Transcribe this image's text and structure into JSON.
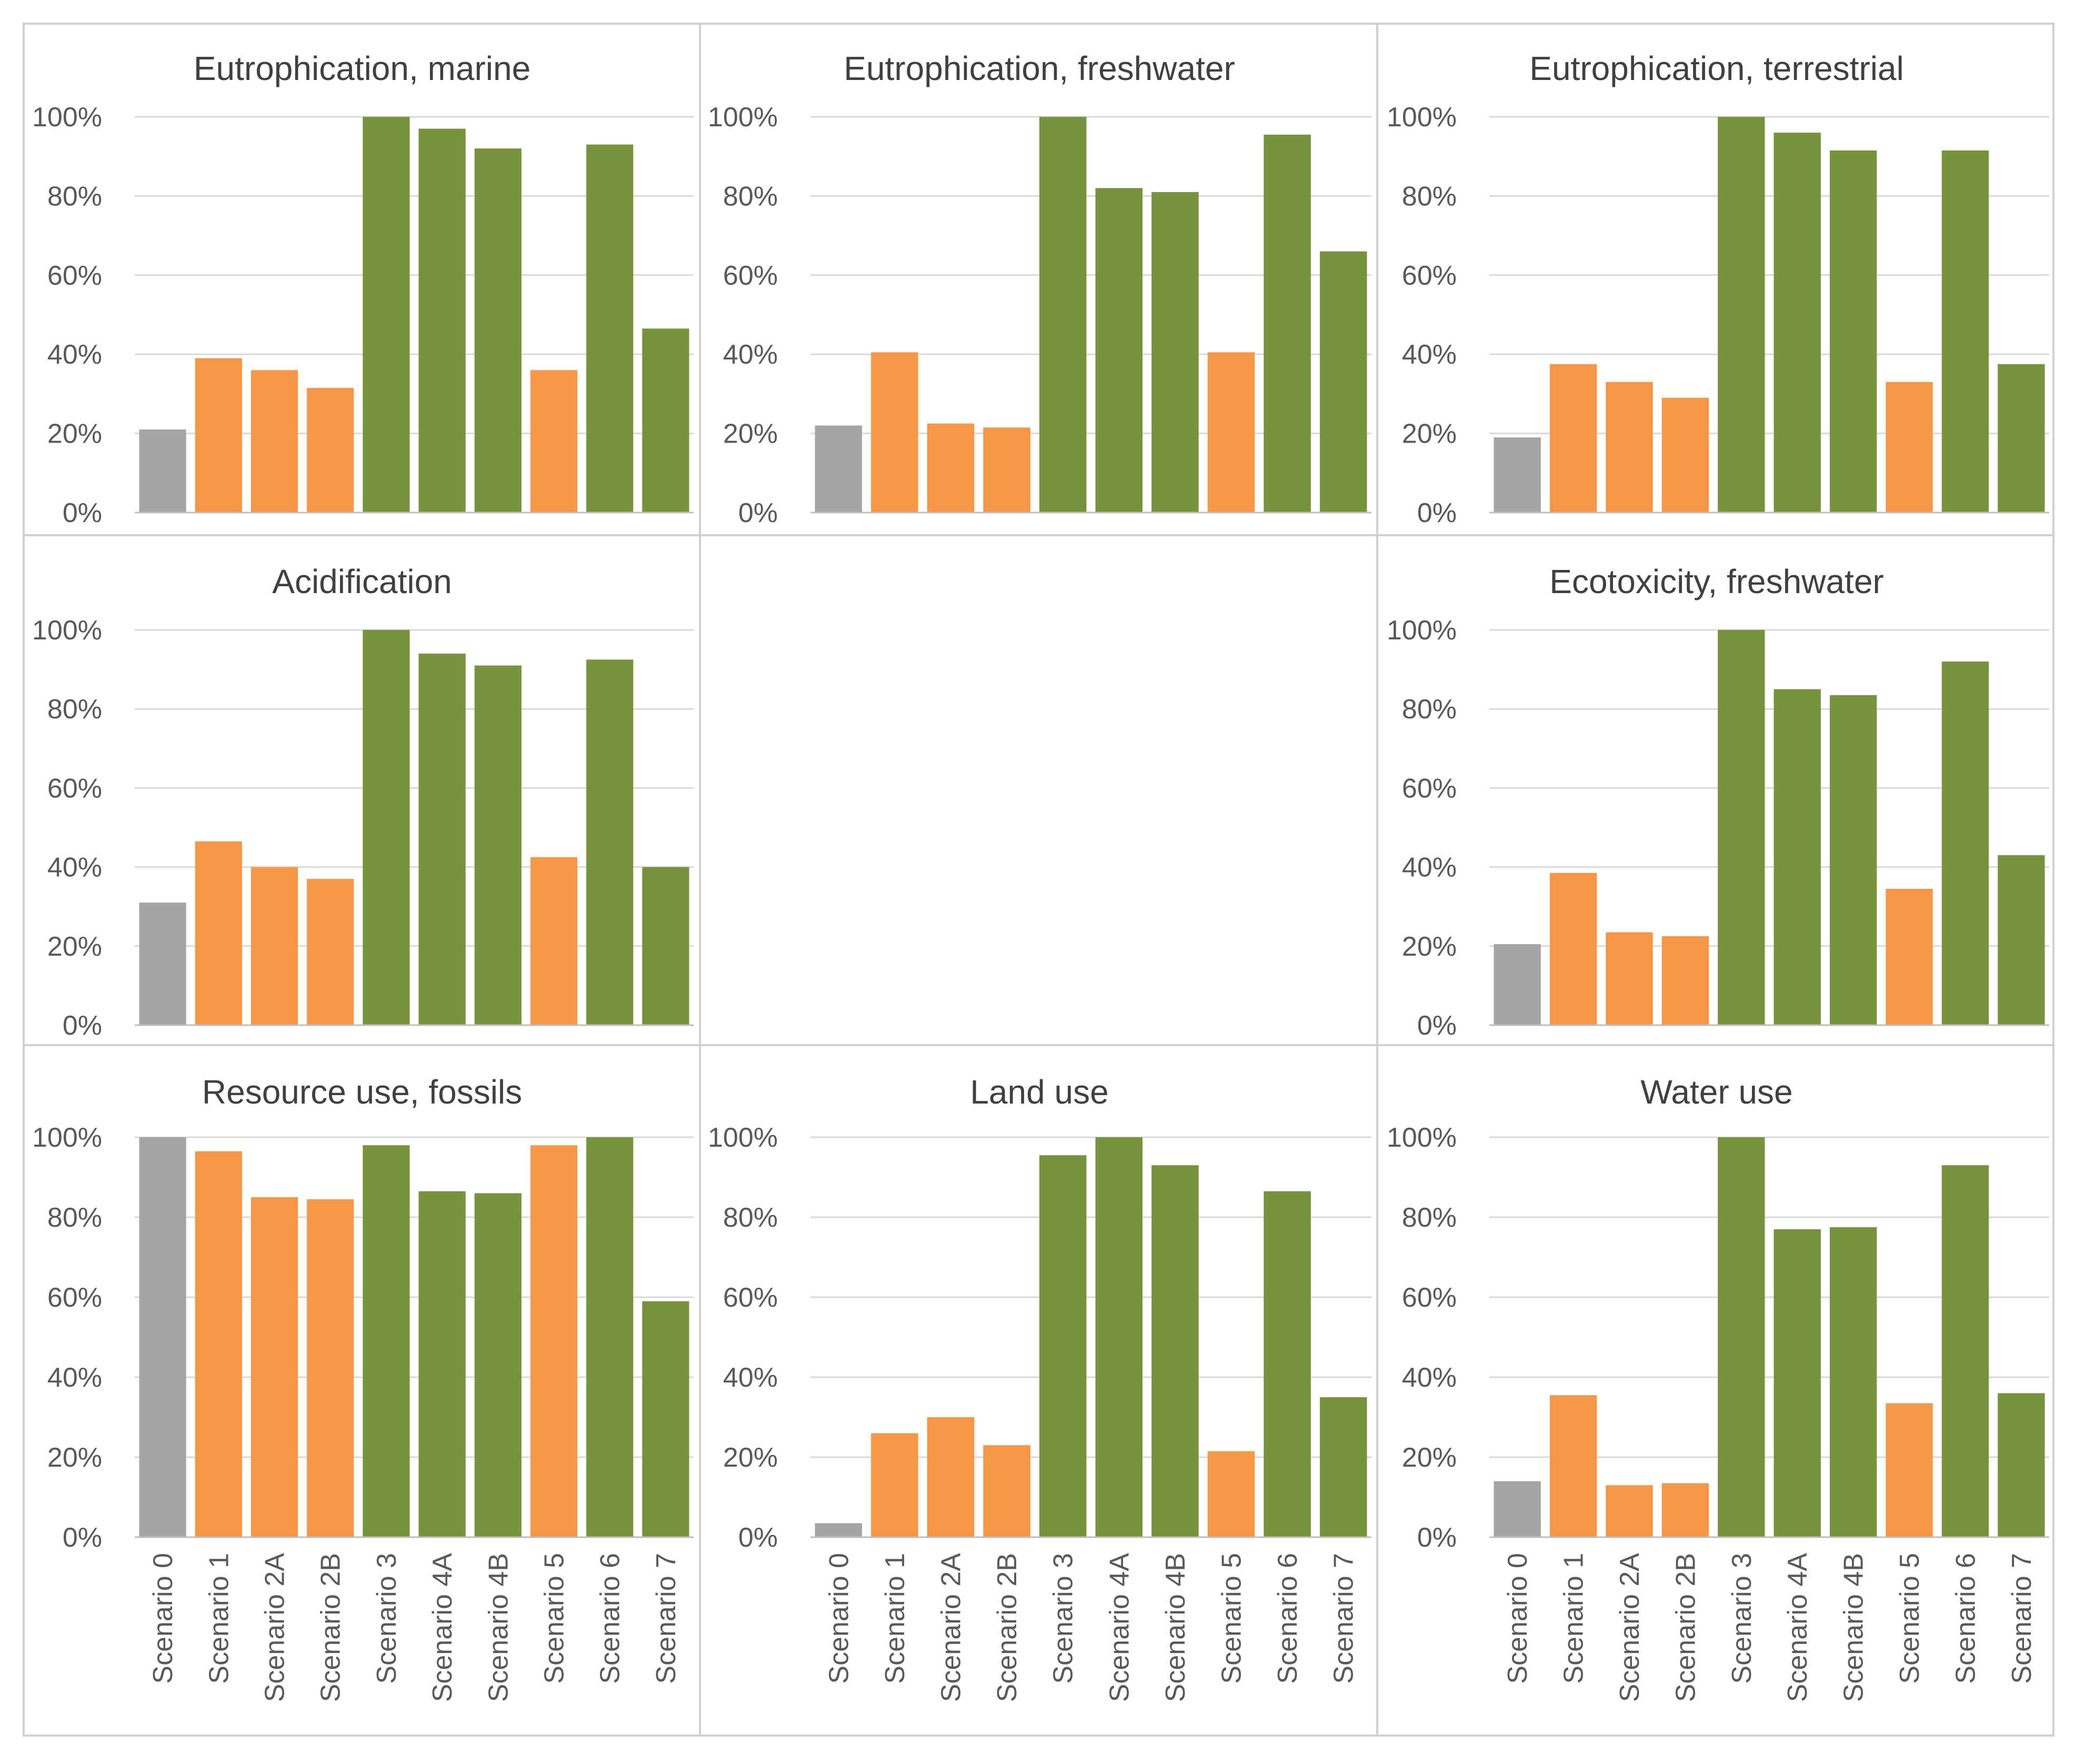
{
  "colors": {
    "gray": "#a5a5a5",
    "orange": "#f79646",
    "green": "#77933c"
  },
  "chart_data": [
    {
      "type": "bar",
      "title": "Eutrophication, marine",
      "categories": [
        "Scenario 0",
        "Scenario 1",
        "Scenario 2A",
        "Scenario 2B",
        "Scenario 3",
        "Scenario 4A",
        "Scenario 4B",
        "Scenario 5",
        "Scenario 6",
        "Scenario 7"
      ],
      "values": [
        21,
        39,
        36,
        31.5,
        100,
        97,
        92,
        36,
        93,
        46.5
      ],
      "bar_colors": [
        "gray",
        "orange",
        "orange",
        "orange",
        "green",
        "green",
        "green",
        "orange",
        "green",
        "green"
      ],
      "ylim": [
        0,
        100
      ],
      "yticks": [
        "0%",
        "20%",
        "40%",
        "60%",
        "80%",
        "100%"
      ],
      "gridlines": true
    },
    {
      "type": "bar",
      "title": "Eutrophication, freshwater",
      "categories": [
        "Scenario 0",
        "Scenario 1",
        "Scenario 2A",
        "Scenario 2B",
        "Scenario 3",
        "Scenario 4A",
        "Scenario 4B",
        "Scenario 5",
        "Scenario 6",
        "Scenario 7"
      ],
      "values": [
        22,
        40.5,
        22.5,
        21.5,
        100,
        82,
        81,
        40.5,
        95.5,
        66
      ],
      "bar_colors": [
        "gray",
        "orange",
        "orange",
        "orange",
        "green",
        "green",
        "green",
        "orange",
        "green",
        "green"
      ],
      "ylim": [
        0,
        100
      ],
      "yticks": [
        "0%",
        "20%",
        "40%",
        "60%",
        "80%",
        "100%"
      ],
      "gridlines": true
    },
    {
      "type": "bar",
      "title": "Eutrophication, terrestrial",
      "categories": [
        "Scenario 0",
        "Scenario 1",
        "Scenario 2A",
        "Scenario 2B",
        "Scenario 3",
        "Scenario 4A",
        "Scenario 4B",
        "Scenario 5",
        "Scenario 6",
        "Scenario 7"
      ],
      "values": [
        19,
        37.5,
        33,
        29,
        100,
        96,
        91.5,
        33,
        91.5,
        37.5
      ],
      "bar_colors": [
        "gray",
        "orange",
        "orange",
        "orange",
        "green",
        "green",
        "green",
        "orange",
        "green",
        "green"
      ],
      "ylim": [
        0,
        100
      ],
      "yticks": [
        "0%",
        "20%",
        "40%",
        "60%",
        "80%",
        "100%"
      ],
      "gridlines": true
    },
    {
      "type": "bar",
      "title": "Acidification",
      "categories": [
        "Scenario 0",
        "Scenario 1",
        "Scenario 2A",
        "Scenario 2B",
        "Scenario 3",
        "Scenario 4A",
        "Scenario 4B",
        "Scenario 5",
        "Scenario 6",
        "Scenario 7"
      ],
      "values": [
        31,
        46.5,
        40,
        37,
        100,
        94,
        91,
        42.5,
        92.5,
        40
      ],
      "bar_colors": [
        "gray",
        "orange",
        "orange",
        "orange",
        "green",
        "green",
        "green",
        "orange",
        "green",
        "green"
      ],
      "ylim": [
        0,
        100
      ],
      "yticks": [
        "0%",
        "20%",
        "40%",
        "60%",
        "80%",
        "100%"
      ],
      "gridlines": true
    },
    {
      "type": "bar",
      "title": "Ecotoxicity, freshwater",
      "categories": [
        "Scenario 0",
        "Scenario 1",
        "Scenario 2A",
        "Scenario 2B",
        "Scenario 3",
        "Scenario 4A",
        "Scenario 4B",
        "Scenario 5",
        "Scenario 6",
        "Scenario 7"
      ],
      "values": [
        20.5,
        38.5,
        23.5,
        22.5,
        100,
        85,
        83.5,
        34.5,
        92,
        43
      ],
      "bar_colors": [
        "gray",
        "orange",
        "orange",
        "orange",
        "green",
        "green",
        "green",
        "orange",
        "green",
        "green"
      ],
      "ylim": [
        0,
        100
      ],
      "yticks": [
        "0%",
        "20%",
        "40%",
        "60%",
        "80%",
        "100%"
      ],
      "gridlines": true
    },
    {
      "type": "bar",
      "title": "Resource use, fossils",
      "categories": [
        "Scenario 0",
        "Scenario 1",
        "Scenario 2A",
        "Scenario 2B",
        "Scenario 3",
        "Scenario 4A",
        "Scenario 4B",
        "Scenario 5",
        "Scenario 6",
        "Scenario 7"
      ],
      "values": [
        100,
        96.5,
        85,
        84.5,
        98,
        86.5,
        86,
        98,
        100,
        59
      ],
      "bar_colors": [
        "gray",
        "orange",
        "orange",
        "orange",
        "green",
        "green",
        "green",
        "orange",
        "green",
        "green"
      ],
      "ylim": [
        0,
        100
      ],
      "yticks": [
        "0%",
        "20%",
        "40%",
        "60%",
        "80%",
        "100%"
      ],
      "gridlines": true
    },
    {
      "type": "bar",
      "title": "Land use",
      "categories": [
        "Scenario 0",
        "Scenario 1",
        "Scenario 2A",
        "Scenario 2B",
        "Scenario 3",
        "Scenario 4A",
        "Scenario 4B",
        "Scenario 5",
        "Scenario 6",
        "Scenario 7"
      ],
      "values": [
        3.5,
        26,
        30,
        23,
        95.5,
        100,
        93,
        21.5,
        86.5,
        35
      ],
      "bar_colors": [
        "gray",
        "orange",
        "orange",
        "orange",
        "green",
        "green",
        "green",
        "orange",
        "green",
        "green"
      ],
      "ylim": [
        0,
        100
      ],
      "yticks": [
        "0%",
        "20%",
        "40%",
        "60%",
        "80%",
        "100%"
      ],
      "gridlines": true
    },
    {
      "type": "bar",
      "title": "Water use",
      "categories": [
        "Scenario 0",
        "Scenario 1",
        "Scenario 2A",
        "Scenario 2B",
        "Scenario 3",
        "Scenario 4A",
        "Scenario 4B",
        "Scenario 5",
        "Scenario 6",
        "Scenario 7"
      ],
      "values": [
        14,
        35.5,
        13,
        13.5,
        100,
        77,
        77.5,
        33.5,
        93,
        36
      ],
      "bar_colors": [
        "gray",
        "orange",
        "orange",
        "orange",
        "green",
        "green",
        "green",
        "orange",
        "green",
        "green"
      ],
      "ylim": [
        0,
        100
      ],
      "yticks": [
        "0%",
        "20%",
        "40%",
        "60%",
        "80%",
        "100%"
      ],
      "gridlines": true
    }
  ]
}
